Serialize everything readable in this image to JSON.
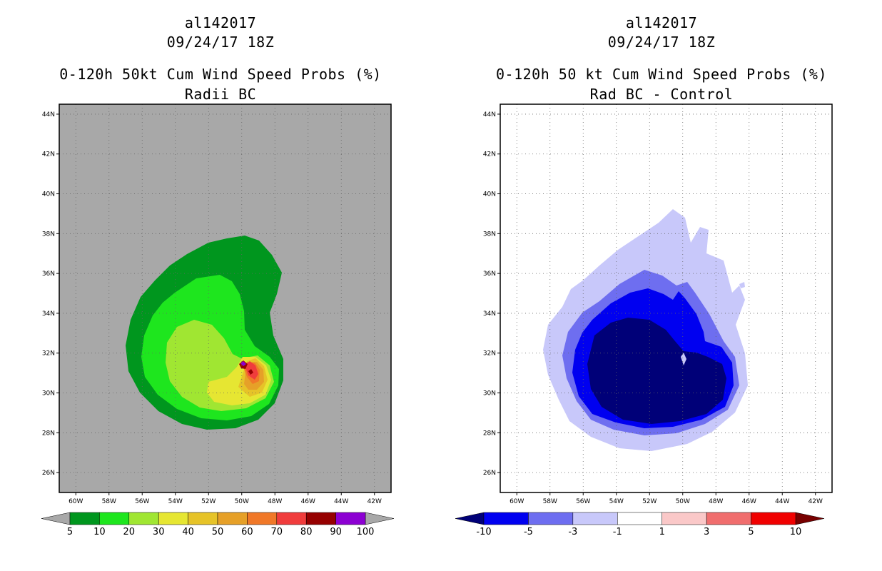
{
  "left": {
    "storm_id": "al142017",
    "datetime": "09/24/17 18Z",
    "title": "0-120h 50kt Cum Wind Speed Probs (%)",
    "subtitle": "Radii BC",
    "lat_labels": [
      "26N",
      "28N",
      "30N",
      "32N",
      "34N",
      "36N",
      "38N",
      "40N",
      "42N",
      "44N"
    ],
    "lon_labels": [
      "60W",
      "58W",
      "56W",
      "54W",
      "52W",
      "50W",
      "48W",
      "46W",
      "44W",
      "42W"
    ],
    "colorbar": {
      "labels": [
        "5",
        "10",
        "20",
        "30",
        "40",
        "50",
        "60",
        "70",
        "80",
        "90",
        "100"
      ],
      "colors": [
        "#00961e",
        "#1ee61e",
        "#a0e632",
        "#e6e632",
        "#e6c328",
        "#e6a028",
        "#f07828",
        "#f03c3c",
        "#960000",
        "#8c00d2"
      ],
      "below_color": "#a8a8a8",
      "above_color": "#a8a8a8"
    },
    "background_color": "#a8a8a8"
  },
  "right": {
    "storm_id": "al142017",
    "datetime": "09/24/17 18Z",
    "title": "0-120h 50 kt Cum Wind Speed Probs (%)",
    "subtitle": "Rad BC - Control",
    "lat_labels": [
      "26N",
      "28N",
      "30N",
      "32N",
      "34N",
      "36N",
      "38N",
      "40N",
      "42N",
      "44N"
    ],
    "lon_labels": [
      "60W",
      "58W",
      "56W",
      "54W",
      "52W",
      "50W",
      "48W",
      "46W",
      "44W",
      "42W"
    ],
    "colorbar": {
      "labels": [
        "-10",
        "-5",
        "-3",
        "-1",
        "1",
        "3",
        "5",
        "10"
      ],
      "colors": [
        "#0000f0",
        "#6e6ef0",
        "#c8c8fa",
        "#ffffff",
        "#fac8c8",
        "#f06e6e",
        "#f00000"
      ],
      "below_color": "#000078",
      "above_color": "#780000"
    },
    "background_color": "#ffffff"
  }
}
